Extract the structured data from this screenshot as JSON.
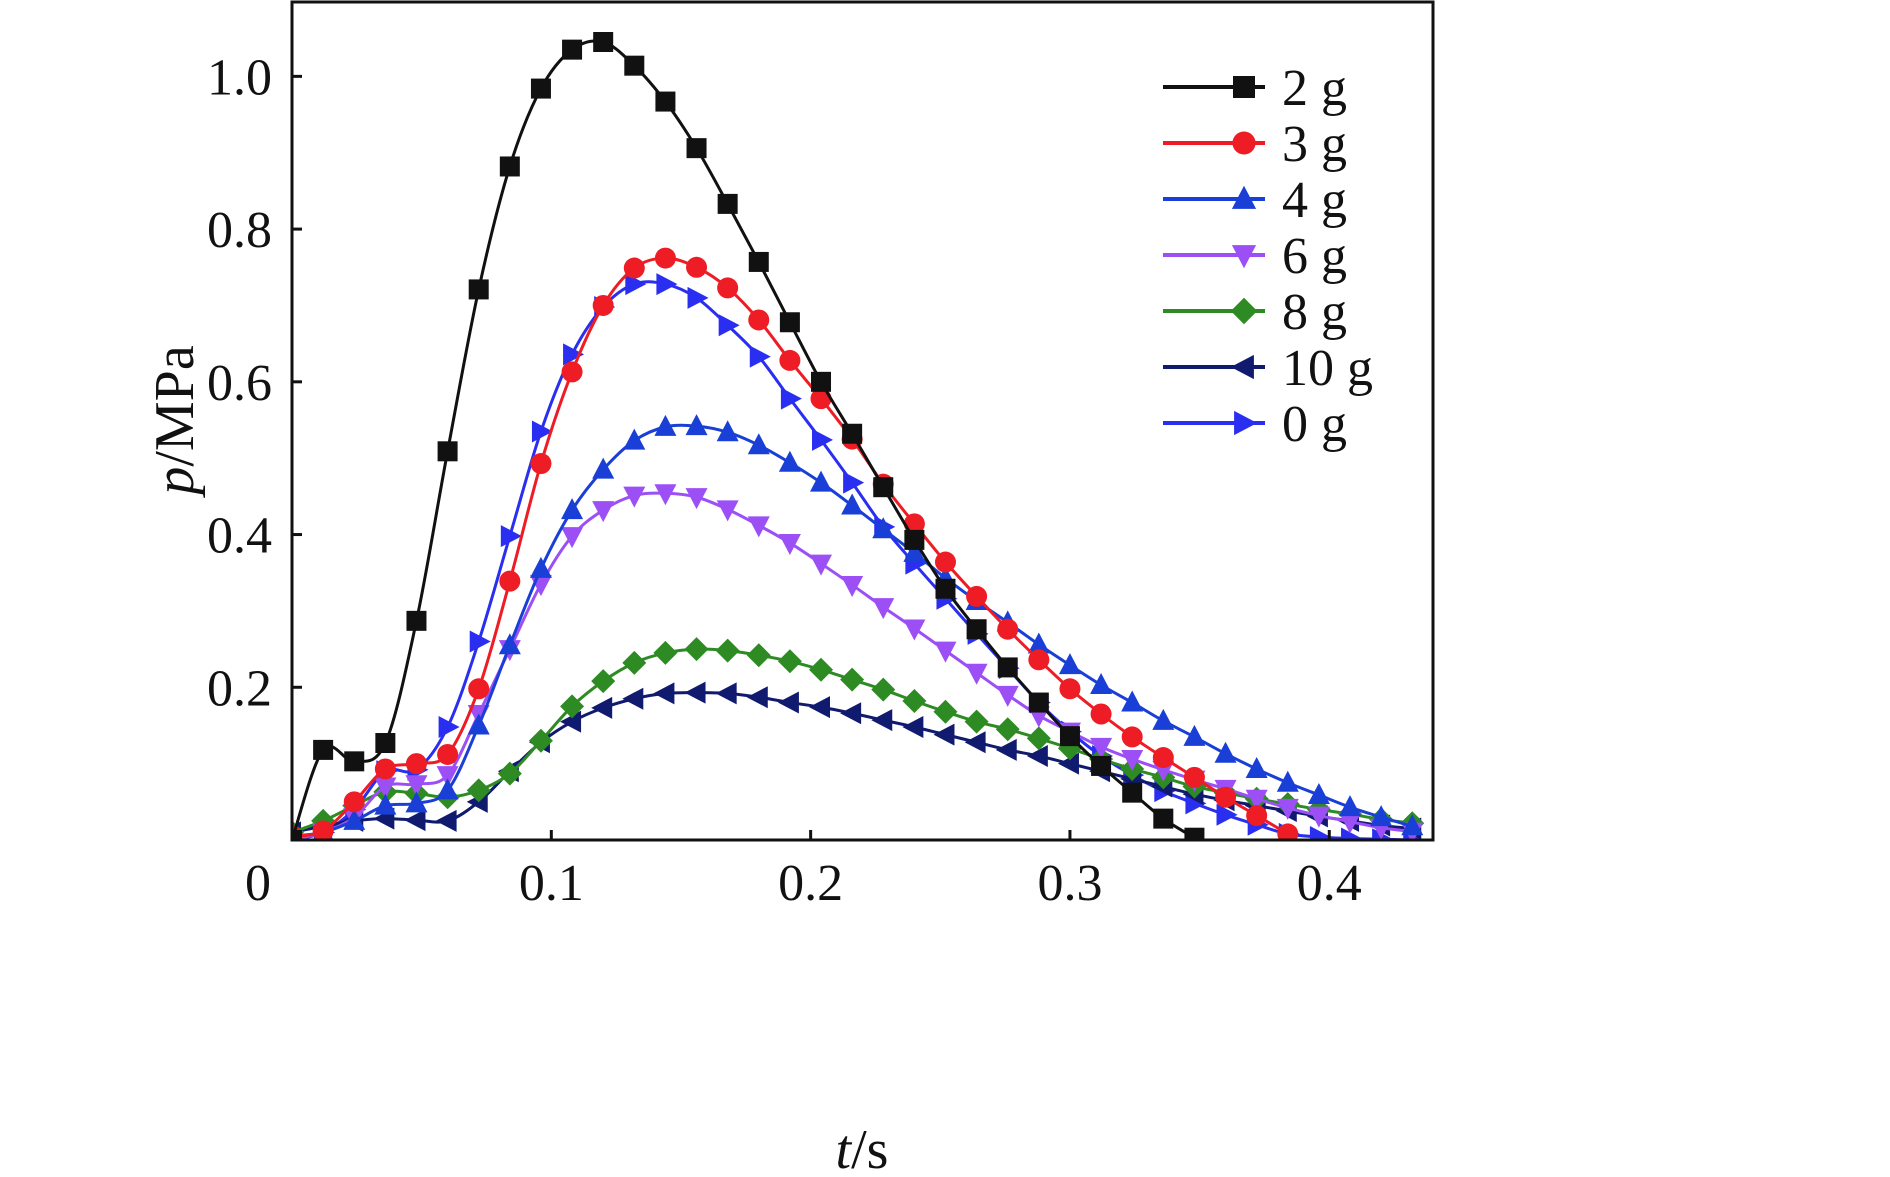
{
  "chart_data": {
    "type": "line",
    "xlabel": {
      "var": "t",
      "unit": "/s"
    },
    "ylabel": {
      "var": "p",
      "unit": "/MPa"
    },
    "xlim": [
      0.0,
      0.44
    ],
    "ylim": [
      0.0,
      1.1
    ],
    "x_ticks": [
      0.1,
      0.2,
      0.3,
      0.4
    ],
    "x_tick_labels": [
      "0.1",
      "0.2",
      "0.3",
      "0.4"
    ],
    "origin_label": "0",
    "y_ticks": [
      0.2,
      0.4,
      0.6,
      0.8,
      1.0
    ],
    "y_tick_labels": [
      "0.2",
      "0.4",
      "0.6",
      "0.8",
      "1.0"
    ],
    "grid": false,
    "legend_position": "top-right",
    "series": [
      {
        "name": "2 g",
        "color": "#111111",
        "marker": "square",
        "x": [
          0.0,
          0.012,
          0.024,
          0.036,
          0.048,
          0.06,
          0.072,
          0.084,
          0.096,
          0.108,
          0.12,
          0.132,
          0.144,
          0.156,
          0.168,
          0.18,
          0.192,
          0.204,
          0.216,
          0.228,
          0.24,
          0.252,
          0.264,
          0.276,
          0.288,
          0.3,
          0.312,
          0.324,
          0.336,
          0.348
        ],
        "y": [
          0.0,
          0.118,
          0.103,
          0.127,
          0.287,
          0.509,
          0.721,
          0.882,
          0.984,
          1.035,
          1.045,
          1.014,
          0.967,
          0.906,
          0.833,
          0.757,
          0.678,
          0.6,
          0.532,
          0.462,
          0.393,
          0.329,
          0.276,
          0.226,
          0.18,
          0.136,
          0.097,
          0.062,
          0.028,
          0.003
        ]
      },
      {
        "name": "3 g",
        "color": "#ee1c24",
        "marker": "circle",
        "x": [
          0.0,
          0.012,
          0.024,
          0.036,
          0.048,
          0.06,
          0.072,
          0.084,
          0.096,
          0.108,
          0.12,
          0.132,
          0.144,
          0.156,
          0.168,
          0.18,
          0.192,
          0.204,
          0.216,
          0.228,
          0.24,
          0.252,
          0.264,
          0.276,
          0.288,
          0.3,
          0.312,
          0.324,
          0.336,
          0.348,
          0.36,
          0.372,
          0.384
        ],
        "y": [
          0.005,
          0.012,
          0.05,
          0.093,
          0.1,
          0.112,
          0.198,
          0.339,
          0.493,
          0.613,
          0.7,
          0.749,
          0.762,
          0.75,
          0.723,
          0.681,
          0.628,
          0.578,
          0.525,
          0.466,
          0.414,
          0.364,
          0.319,
          0.276,
          0.236,
          0.198,
          0.165,
          0.135,
          0.108,
          0.082,
          0.056,
          0.032,
          0.008
        ]
      },
      {
        "name": "4 g",
        "color": "#1a3fd6",
        "marker": "triangle-up",
        "x": [
          0.0,
          0.012,
          0.024,
          0.036,
          0.048,
          0.06,
          0.072,
          0.084,
          0.096,
          0.108,
          0.12,
          0.132,
          0.144,
          0.156,
          0.168,
          0.18,
          0.192,
          0.204,
          0.216,
          0.228,
          0.24,
          0.252,
          0.264,
          0.276,
          0.288,
          0.3,
          0.312,
          0.324,
          0.336,
          0.348,
          0.36,
          0.372,
          0.384,
          0.396,
          0.408,
          0.42,
          0.432
        ],
        "y": [
          0.005,
          0.01,
          0.025,
          0.045,
          0.048,
          0.065,
          0.15,
          0.255,
          0.355,
          0.432,
          0.485,
          0.523,
          0.541,
          0.542,
          0.534,
          0.517,
          0.494,
          0.468,
          0.438,
          0.407,
          0.376,
          0.343,
          0.313,
          0.285,
          0.256,
          0.229,
          0.203,
          0.18,
          0.156,
          0.135,
          0.113,
          0.093,
          0.075,
          0.059,
          0.043,
          0.03,
          0.018
        ]
      },
      {
        "name": "6 g",
        "color": "#9b4ff5",
        "marker": "triangle-down",
        "x": [
          0.0,
          0.012,
          0.024,
          0.036,
          0.048,
          0.06,
          0.072,
          0.084,
          0.096,
          0.108,
          0.12,
          0.132,
          0.144,
          0.156,
          0.168,
          0.18,
          0.192,
          0.204,
          0.216,
          0.228,
          0.24,
          0.252,
          0.264,
          0.276,
          0.288,
          0.3,
          0.312,
          0.324,
          0.336,
          0.348,
          0.36,
          0.372,
          0.384,
          0.396,
          0.408,
          0.42,
          0.432
        ],
        "y": [
          0.0,
          0.01,
          0.03,
          0.07,
          0.073,
          0.085,
          0.165,
          0.25,
          0.335,
          0.398,
          0.432,
          0.451,
          0.454,
          0.449,
          0.433,
          0.412,
          0.389,
          0.362,
          0.334,
          0.305,
          0.277,
          0.248,
          0.219,
          0.19,
          0.163,
          0.142,
          0.122,
          0.106,
          0.092,
          0.079,
          0.067,
          0.054,
          0.042,
          0.032,
          0.024,
          0.016,
          0.011
        ]
      },
      {
        "name": "8 g",
        "color": "#2e8b23",
        "marker": "diamond",
        "x": [
          0.0,
          0.012,
          0.024,
          0.036,
          0.048,
          0.06,
          0.072,
          0.084,
          0.096,
          0.108,
          0.12,
          0.132,
          0.144,
          0.156,
          0.168,
          0.18,
          0.192,
          0.204,
          0.216,
          0.228,
          0.24,
          0.252,
          0.264,
          0.276,
          0.288,
          0.3,
          0.312,
          0.324,
          0.336,
          0.348,
          0.36,
          0.372,
          0.384,
          0.396,
          0.408,
          0.42,
          0.432
        ],
        "y": [
          0.01,
          0.025,
          0.045,
          0.063,
          0.061,
          0.056,
          0.065,
          0.087,
          0.13,
          0.175,
          0.208,
          0.232,
          0.245,
          0.25,
          0.248,
          0.242,
          0.234,
          0.223,
          0.21,
          0.197,
          0.182,
          0.168,
          0.155,
          0.145,
          0.133,
          0.12,
          0.106,
          0.093,
          0.082,
          0.07,
          0.062,
          0.054,
          0.047,
          0.04,
          0.034,
          0.027,
          0.022
        ]
      },
      {
        "name": "10 g",
        "color": "#101a6e",
        "marker": "triangle-left",
        "x": [
          0.0,
          0.012,
          0.024,
          0.036,
          0.048,
          0.06,
          0.072,
          0.084,
          0.096,
          0.108,
          0.12,
          0.132,
          0.144,
          0.156,
          0.168,
          0.18,
          0.192,
          0.204,
          0.216,
          0.228,
          0.24,
          0.252,
          0.264,
          0.276,
          0.288,
          0.3,
          0.312,
          0.324,
          0.336,
          0.348,
          0.36,
          0.372,
          0.384,
          0.396,
          0.408,
          0.42,
          0.432
        ],
        "y": [
          0.01,
          0.018,
          0.025,
          0.028,
          0.026,
          0.025,
          0.05,
          0.09,
          0.128,
          0.155,
          0.173,
          0.185,
          0.192,
          0.193,
          0.192,
          0.187,
          0.18,
          0.174,
          0.166,
          0.157,
          0.148,
          0.138,
          0.128,
          0.118,
          0.11,
          0.1,
          0.09,
          0.08,
          0.07,
          0.06,
          0.052,
          0.045,
          0.038,
          0.031,
          0.025,
          0.019,
          0.015
        ]
      },
      {
        "name": "0 g",
        "color": "#2a2ef0",
        "marker": "triangle-right",
        "x": [
          0.0,
          0.012,
          0.024,
          0.036,
          0.048,
          0.06,
          0.072,
          0.084,
          0.096,
          0.108,
          0.12,
          0.132,
          0.144,
          0.156,
          0.168,
          0.18,
          0.192,
          0.204,
          0.216,
          0.228,
          0.24,
          0.252,
          0.264,
          0.276,
          0.288,
          0.3,
          0.312,
          0.324,
          0.336,
          0.348,
          0.36,
          0.372,
          0.384,
          0.396,
          0.408,
          0.42,
          0.432
        ],
        "y": [
          0.0,
          0.01,
          0.04,
          0.09,
          0.092,
          0.148,
          0.26,
          0.398,
          0.535,
          0.636,
          0.698,
          0.728,
          0.728,
          0.71,
          0.674,
          0.633,
          0.578,
          0.524,
          0.468,
          0.41,
          0.362,
          0.316,
          0.27,
          0.225,
          0.18,
          0.142,
          0.11,
          0.085,
          0.064,
          0.048,
          0.033,
          0.02,
          0.008,
          0.004,
          0.002,
          0.001,
          0.0
        ]
      }
    ]
  }
}
